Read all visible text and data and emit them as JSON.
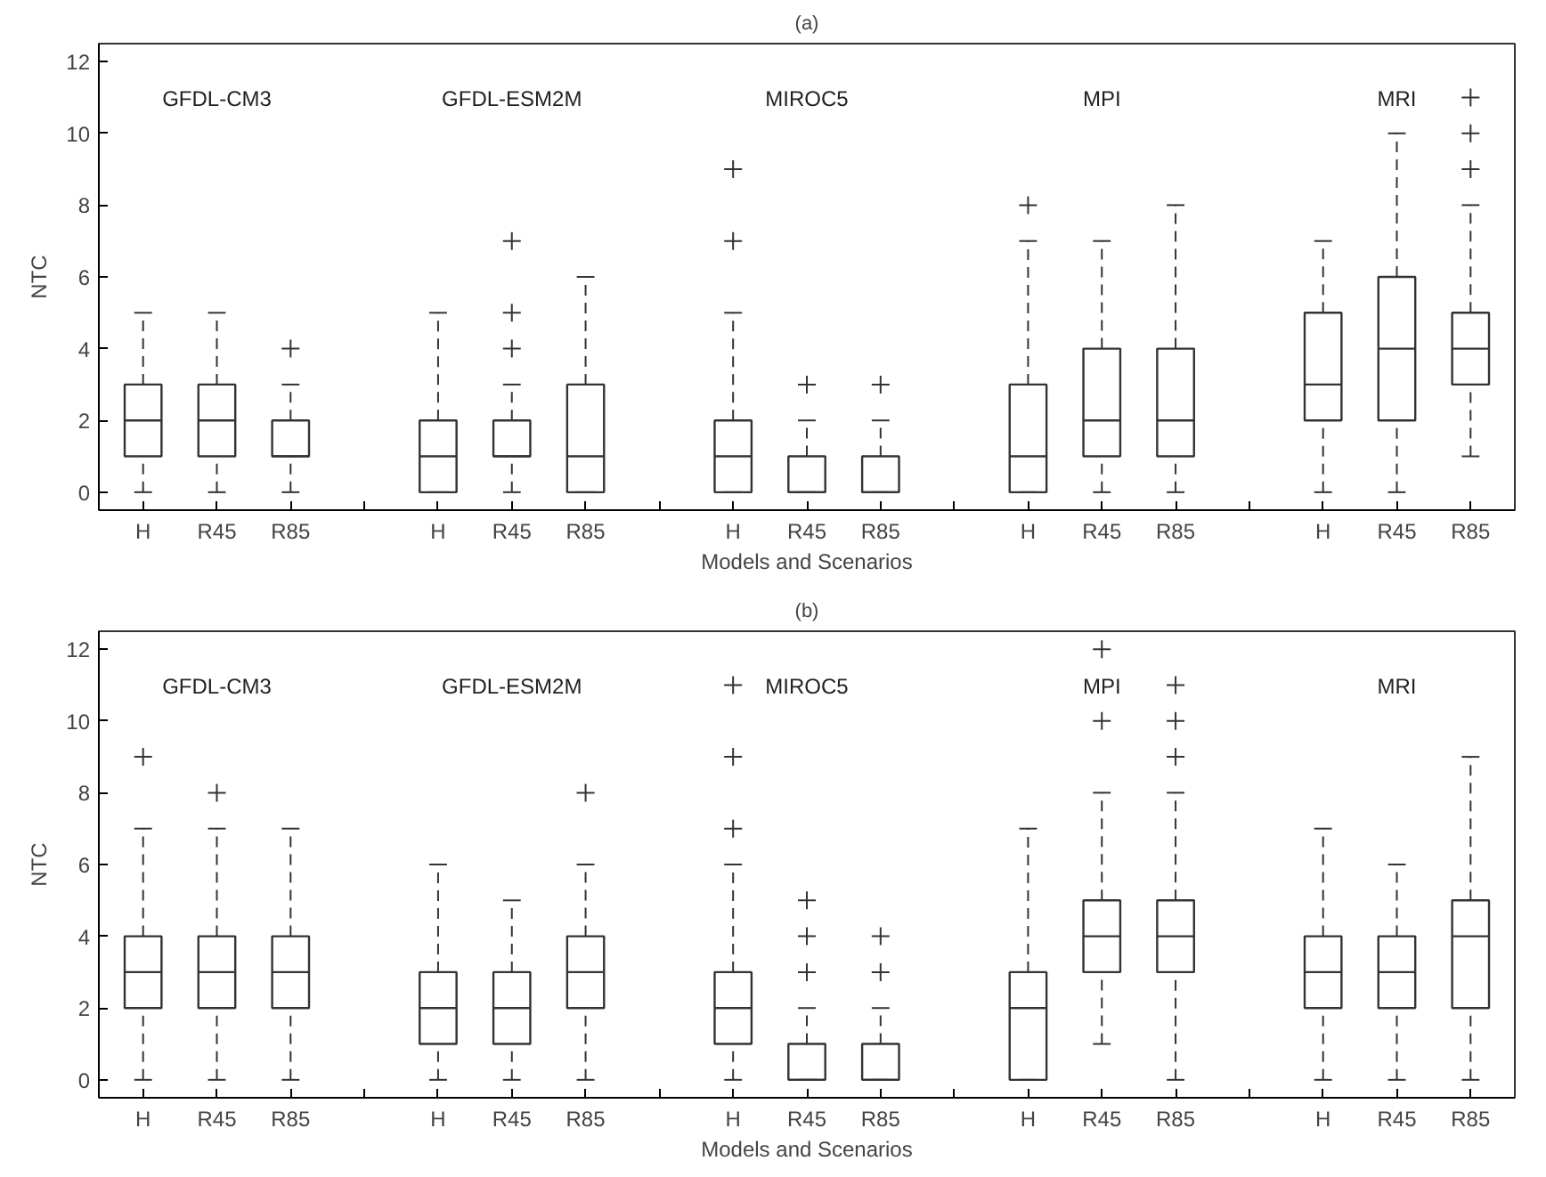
{
  "chart_data": [
    {
      "type": "box",
      "title": "(a)",
      "xlabel": "Models and Scenarios",
      "ylabel": "NTC",
      "ylim": [
        -0.5,
        12.5
      ],
      "yticks": [
        0,
        2,
        4,
        6,
        8,
        10,
        12
      ],
      "grid": false,
      "marker": "cross",
      "line_style": "dashed",
      "categories": [
        "H",
        "R45",
        "R85",
        null,
        "H",
        "R45",
        "R85",
        null,
        "H",
        "R45",
        "R85",
        null,
        "H",
        "R45",
        "R85",
        null,
        "H",
        "R45",
        "R85"
      ],
      "annotations": [
        "GFDL-CM3",
        "GFDL-ESM2M",
        "MIROC5",
        "MPI",
        "MRI"
      ],
      "boxes": [
        {
          "low": 0,
          "q1": 1,
          "median": 2,
          "q3": 3,
          "high": 5
        },
        {
          "low": 0,
          "q1": 1,
          "median": 2,
          "q3": 3,
          "high": 5
        },
        {
          "low": 0,
          "q1": 1,
          "median": 1,
          "q3": 2,
          "high": 3,
          "outliers": [
            4
          ]
        },
        null,
        {
          "low": 0,
          "q1": 0,
          "median": 1,
          "q3": 2,
          "high": 5
        },
        {
          "low": 0,
          "q1": 1,
          "median": 1,
          "q3": 2,
          "high": 3,
          "outliers": [
            4,
            5,
            7
          ]
        },
        {
          "low": 0,
          "q1": 0,
          "median": 1,
          "q3": 3,
          "high": 6
        },
        null,
        {
          "low": 0,
          "q1": 0,
          "median": 1,
          "q3": 2,
          "high": 5,
          "outliers": [
            7,
            9
          ]
        },
        {
          "low": 0,
          "q1": 0,
          "median": 0,
          "q3": 1,
          "high": 2,
          "outliers": [
            3
          ]
        },
        {
          "low": 0,
          "q1": 0,
          "median": 0,
          "q3": 1,
          "high": 2,
          "outliers": [
            3
          ]
        },
        null,
        {
          "low": 0,
          "q1": 0,
          "median": 1,
          "q3": 3,
          "high": 7,
          "outliers": [
            8
          ]
        },
        {
          "low": 0,
          "q1": 1,
          "median": 2,
          "q3": 4,
          "high": 7
        },
        {
          "low": 0,
          "q1": 1,
          "median": 2,
          "q3": 4,
          "high": 8
        },
        null,
        {
          "low": 0,
          "q1": 2,
          "median": 3,
          "q3": 5,
          "high": 7
        },
        {
          "low": 0,
          "q1": 2,
          "median": 4,
          "q3": 6,
          "high": 10
        },
        {
          "low": 1,
          "q1": 3,
          "median": 4,
          "q3": 5,
          "high": 8,
          "outliers": [
            9,
            10,
            11
          ]
        }
      ]
    },
    {
      "type": "box",
      "title": "(b)",
      "xlabel": "Models and Scenarios",
      "ylabel": "NTC",
      "ylim": [
        -0.5,
        12.5
      ],
      "yticks": [
        0,
        2,
        4,
        6,
        8,
        10,
        12
      ],
      "grid": false,
      "marker": "cross",
      "line_style": "dashed",
      "categories": [
        "H",
        "R45",
        "R85",
        null,
        "H",
        "R45",
        "R85",
        null,
        "H",
        "R45",
        "R85",
        null,
        "H",
        "R45",
        "R85",
        null,
        "H",
        "R45",
        "R85"
      ],
      "annotations": [
        "GFDL-CM3",
        "GFDL-ESM2M",
        "MIROC5",
        "MPI",
        "MRI"
      ],
      "boxes": [
        {
          "low": 0,
          "q1": 2,
          "median": 3,
          "q3": 4,
          "high": 7,
          "outliers": [
            9
          ]
        },
        {
          "low": 0,
          "q1": 2,
          "median": 3,
          "q3": 4,
          "high": 7,
          "outliers": [
            8
          ]
        },
        {
          "low": 0,
          "q1": 2,
          "median": 3,
          "q3": 4,
          "high": 7
        },
        null,
        {
          "low": 0,
          "q1": 1,
          "median": 2,
          "q3": 3,
          "high": 6
        },
        {
          "low": 0,
          "q1": 1,
          "median": 2,
          "q3": 3,
          "high": 5
        },
        {
          "low": 0,
          "q1": 2,
          "median": 3,
          "q3": 4,
          "high": 6,
          "outliers": [
            8
          ]
        },
        null,
        {
          "low": 0,
          "q1": 1,
          "median": 2,
          "q3": 3,
          "high": 6,
          "outliers": [
            7,
            9,
            11
          ]
        },
        {
          "low": 0,
          "q1": 0,
          "median": 0,
          "q3": 1,
          "high": 2,
          "outliers": [
            3,
            4,
            5
          ]
        },
        {
          "low": 0,
          "q1": 0,
          "median": 0,
          "q3": 1,
          "high": 2,
          "outliers": [
            3,
            4
          ]
        },
        null,
        {
          "low": 0,
          "q1": 0,
          "median": 2,
          "q3": 3,
          "high": 7
        },
        {
          "low": 1,
          "q1": 3,
          "median": 4,
          "q3": 5,
          "high": 8,
          "outliers": [
            10,
            12
          ]
        },
        {
          "low": 0,
          "q1": 3,
          "median": 4,
          "q3": 5,
          "high": 8,
          "outliers": [
            9,
            10,
            11
          ]
        },
        null,
        {
          "low": 0,
          "q1": 2,
          "median": 3,
          "q3": 4,
          "high": 7
        },
        {
          "low": 0,
          "q1": 2,
          "median": 3,
          "q3": 4,
          "high": 6
        },
        {
          "low": 0,
          "q1": 2,
          "median": 4,
          "q3": 5,
          "high": 9
        }
      ]
    }
  ]
}
